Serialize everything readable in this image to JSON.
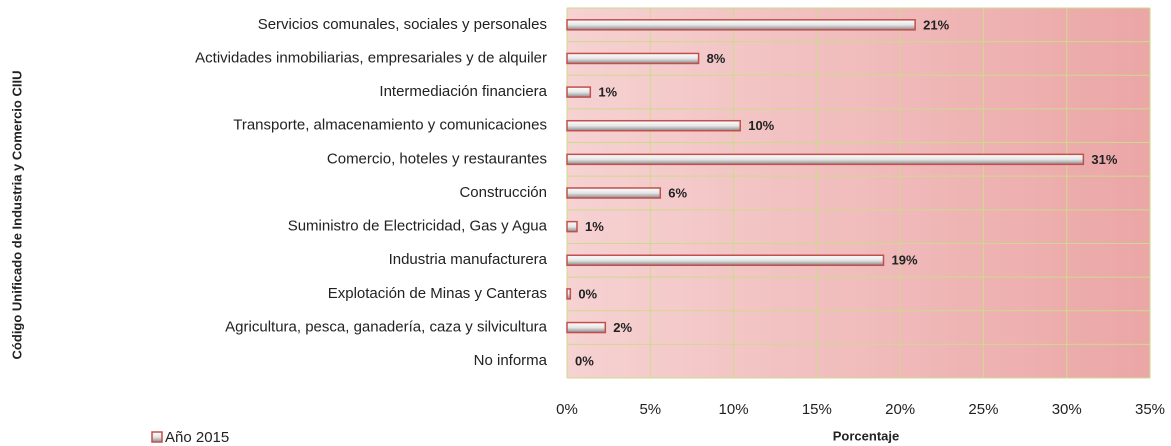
{
  "chart_data": {
    "type": "bar",
    "orientation": "horizontal",
    "y_axis_label": "Código Unificado de Industria y Comercio CIIU",
    "x_axis_label": "Porcentaje",
    "categories": [
      "Servicios comunales, sociales y personales",
      "Actividades inmobiliarias, empresariales y de alquiler",
      "Intermediación financiera",
      "Transporte, almacenamiento y comunicaciones",
      "Comercio, hoteles y restaurantes",
      "Construcción",
      "Suministro de Electricidad, Gas y Agua",
      "Industria manufacturera",
      "Explotación de Minas y Canteras",
      "Agricultura, pesca, ganadería, caza y silvicultura",
      "No informa"
    ],
    "series": [
      {
        "name": "Año 2015",
        "color": "#c0504d",
        "values": [
          20.9,
          7.9,
          1.4,
          10.4,
          31,
          5.6,
          0.6,
          19,
          0.2,
          2.3,
          0
        ],
        "value_labels": [
          "21%",
          "8%",
          "1%",
          "10%",
          "31%",
          "6%",
          "1%",
          "19%",
          "0%",
          "2%",
          "0%"
        ]
      }
    ],
    "xlim": [
      0,
      35
    ],
    "xticks": [
      {
        "value": 0,
        "label": "0%"
      },
      {
        "value": 5,
        "label": "5%"
      },
      {
        "value": 10,
        "label": "10%"
      },
      {
        "value": 15,
        "label": "15%"
      },
      {
        "value": 20,
        "label": "20%"
      },
      {
        "value": 25,
        "label": "25%"
      },
      {
        "value": 30,
        "label": "30%"
      },
      {
        "value": 35,
        "label": "35%"
      }
    ],
    "grid": true
  }
}
